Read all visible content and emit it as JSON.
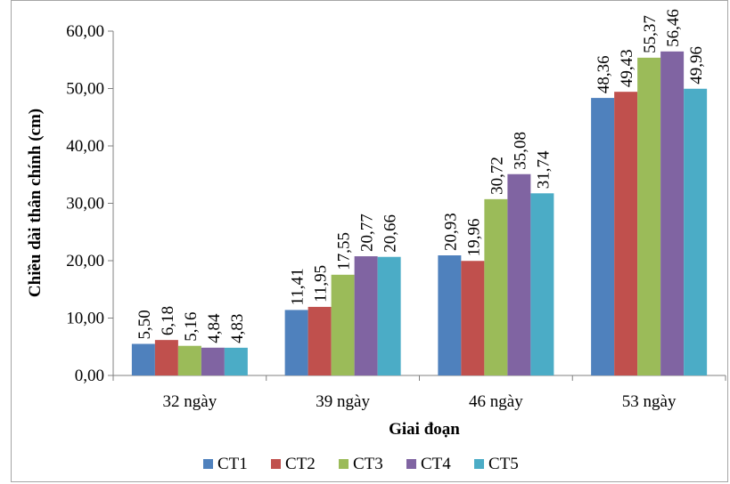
{
  "chart_data": {
    "type": "bar",
    "title": "",
    "xlabel": "Giai đoạn",
    "ylabel": "Chiều dài thân chính (cm)",
    "ylim": [
      0,
      60
    ],
    "yticks": [
      "0,00",
      "10,00",
      "20,00",
      "30,00",
      "40,00",
      "50,00",
      "60,00"
    ],
    "categories": [
      "32 ngày",
      "39 ngày",
      "46 ngày",
      "53 ngày"
    ],
    "series": [
      {
        "name": "CT1",
        "color": "#4f81bd",
        "values": [
          5.5,
          11.41,
          20.93,
          48.36
        ],
        "labels": [
          "5,50",
          "11,41",
          "20,93",
          "48,36"
        ]
      },
      {
        "name": "CT2",
        "color": "#c0504d",
        "values": [
          6.18,
          11.95,
          19.96,
          49.43
        ],
        "labels": [
          "6,18",
          "11,95",
          "19,96",
          "49,43"
        ]
      },
      {
        "name": "CT3",
        "color": "#9bbb59",
        "values": [
          5.16,
          17.55,
          30.72,
          55.37
        ],
        "labels": [
          "5,16",
          "17,55",
          "30,72",
          "55,37"
        ]
      },
      {
        "name": "CT4",
        "color": "#8064a2",
        "values": [
          4.84,
          20.77,
          35.08,
          56.46
        ],
        "labels": [
          "4,84",
          "20,77",
          "35,08",
          "56,46"
        ]
      },
      {
        "name": "CT5",
        "color": "#4bacc6",
        "values": [
          4.83,
          20.66,
          31.74,
          49.96
        ],
        "labels": [
          "4,83",
          "20,66",
          "31,74",
          "49,96"
        ]
      }
    ],
    "grid": false,
    "legend": "bottom"
  }
}
